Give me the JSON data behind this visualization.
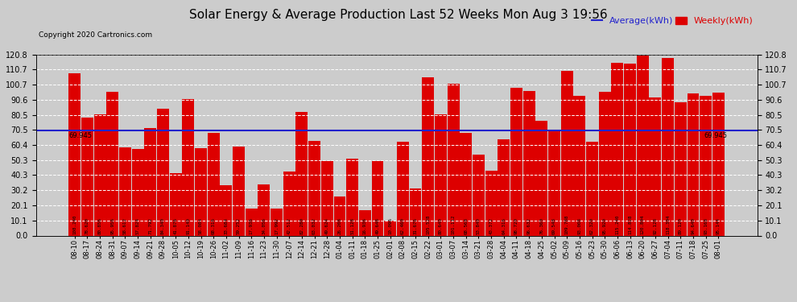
{
  "title": "Solar Energy & Average Production Last 52 Weeks Mon Aug 3 19:56",
  "copyright": "Copyright 2020 Cartronics.com",
  "average_label": "Average(kWh)",
  "weekly_label": "Weekly(kWh)",
  "average_value": 69.945,
  "bar_color": "#dd0000",
  "average_line_color": "#2222cc",
  "background_color": "#cccccc",
  "plot_bg_color": "#cccccc",
  "ylim": [
    0,
    120.8
  ],
  "yticks": [
    0.0,
    10.1,
    20.1,
    30.2,
    40.3,
    50.3,
    60.4,
    70.5,
    80.5,
    90.6,
    100.7,
    110.7,
    120.8
  ],
  "categories": [
    "08-10",
    "08-17",
    "08-24",
    "08-31",
    "09-07",
    "09-14",
    "09-21",
    "09-28",
    "10-05",
    "10-12",
    "10-19",
    "10-26",
    "11-02",
    "11-09",
    "11-16",
    "11-23",
    "11-30",
    "12-07",
    "12-14",
    "12-21",
    "12-28",
    "01-04",
    "01-11",
    "01-18",
    "01-25",
    "02-01",
    "02-08",
    "02-15",
    "02-22",
    "03-01",
    "03-07",
    "03-14",
    "03-21",
    "03-28",
    "04-04",
    "04-11",
    "04-18",
    "04-25",
    "05-02",
    "05-09",
    "05-16",
    "05-23",
    "05-30",
    "06-06",
    "06-13",
    "06-20",
    "06-27",
    "07-04",
    "07-11",
    "07-18",
    "07-25",
    "08-01"
  ],
  "values": [
    108.24,
    78.62,
    80.856,
    95.956,
    58.612,
    57.824,
    71.792,
    84.34,
    41.876,
    91.14,
    58.084,
    68.316,
    33.684,
    59.252,
    17.936,
    34.056,
    17.992,
    42.512,
    82.28,
    63.032,
    49.624,
    26.208,
    51.128,
    16.936,
    49.648,
    10.096,
    62.46,
    31.676,
    105.528,
    80.64,
    101.112,
    68.568,
    53.84,
    43.372,
    64.316,
    98.72,
    96.632,
    76.36,
    69.548,
    109.788,
    93.008,
    62.32,
    95.92,
    115.24,
    114.828,
    120.804,
    92.128,
    118.304,
    89.12,
    94.64,
    93.168,
    95.144
  ]
}
